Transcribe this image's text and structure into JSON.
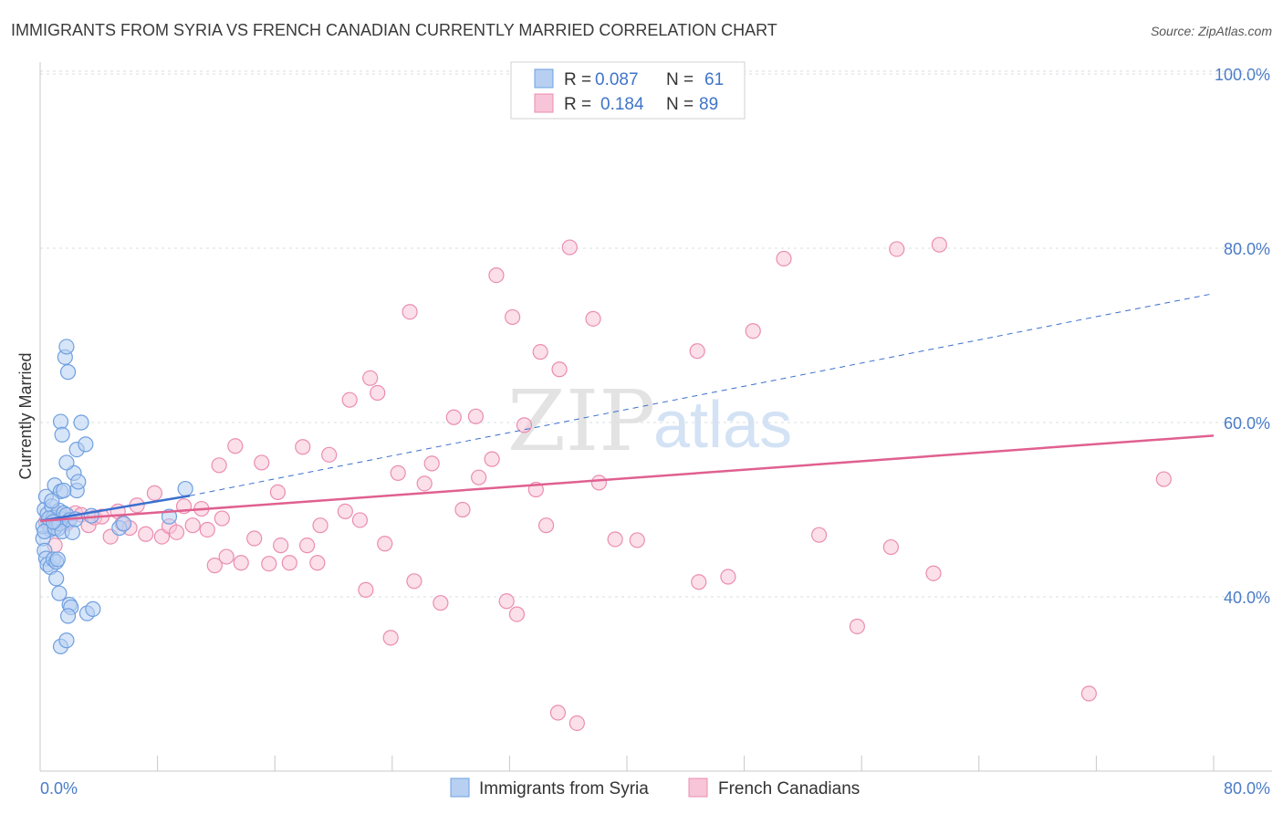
{
  "title": "IMMIGRANTS FROM SYRIA VS FRENCH CANADIAN CURRENTLY MARRIED CORRELATION CHART",
  "source": "Source: ZipAtlas.com",
  "watermark": {
    "zip": "ZIP",
    "atlas": "atlas"
  },
  "colors": {
    "blue": "#6f9fe0",
    "blue_fill": "#b7d0f2",
    "blue_line": "#3b6fcf",
    "pink": "#eb8db0",
    "pink_fill": "#f7c5d7",
    "pink_line": "#e0608f",
    "tick_label": "#4a7cc7"
  },
  "legend": {
    "rows": [
      {
        "r_label": "R =",
        "r_value": "0.087",
        "n_label": "N =",
        "n_value": "61"
      },
      {
        "r_label": "R =",
        "r_value": "0.184",
        "n_label": "N =",
        "n_value": "89"
      }
    ]
  },
  "bottom_legend": [
    "Immigrants from Syria",
    "French Canadians"
  ],
  "chart_data": {
    "type": "scatter",
    "title": "IMMIGRANTS FROM SYRIA VS FRENCH CANADIAN CURRENTLY MARRIED CORRELATION CHART",
    "xlabel": "",
    "ylabel": "Currently Married",
    "xlim": [
      0,
      80
    ],
    "ylim": [
      20,
      102
    ],
    "x_tick_labels": [
      "0.0%",
      "80.0%"
    ],
    "y_ticks": [
      40,
      60,
      80,
      100
    ],
    "y_tick_labels": [
      "40.0%",
      "60.0%",
      "80.0%",
      "100.0%"
    ],
    "grid": true,
    "series": [
      {
        "name": "Immigrants from Syria",
        "R": 0.087,
        "N": 61,
        "trend": {
          "x0": 0,
          "y0": 48.7,
          "x1": 10.2,
          "y1": 51.6,
          "dashed_to_x": 80,
          "dashed_to_y": 74.8
        },
        "points": [
          [
            0.3,
            50.0
          ],
          [
            0.4,
            51.5
          ],
          [
            0.5,
            49.5
          ],
          [
            0.6,
            48.3
          ],
          [
            0.7,
            47.7
          ],
          [
            0.8,
            50.4
          ],
          [
            0.9,
            49.1
          ],
          [
            1.0,
            52.8
          ],
          [
            1.1,
            48.6
          ],
          [
            1.2,
            47.8
          ],
          [
            1.3,
            49.9
          ],
          [
            1.4,
            52.1
          ],
          [
            1.5,
            48.9
          ],
          [
            1.6,
            49.6
          ],
          [
            0.2,
            46.7
          ],
          [
            0.3,
            45.3
          ],
          [
            0.4,
            44.4
          ],
          [
            0.5,
            43.7
          ],
          [
            0.7,
            43.4
          ],
          [
            0.9,
            44.3
          ],
          [
            1.1,
            44.0
          ],
          [
            1.2,
            44.3
          ],
          [
            0.2,
            48.1
          ],
          [
            0.3,
            47.5
          ],
          [
            0.6,
            49.0
          ],
          [
            0.8,
            51.0
          ],
          [
            1.0,
            47.9
          ],
          [
            1.3,
            48.4
          ],
          [
            1.5,
            47.5
          ],
          [
            1.8,
            49.4
          ],
          [
            2.0,
            48.8
          ],
          [
            2.2,
            47.4
          ],
          [
            2.3,
            54.2
          ],
          [
            2.5,
            52.2
          ],
          [
            1.8,
            55.4
          ],
          [
            2.6,
            53.2
          ],
          [
            2.8,
            60.0
          ],
          [
            1.4,
            60.1
          ],
          [
            1.5,
            58.6
          ],
          [
            2.5,
            56.9
          ],
          [
            3.1,
            57.5
          ],
          [
            1.7,
            67.5
          ],
          [
            1.8,
            68.7
          ],
          [
            1.9,
            65.8
          ],
          [
            1.1,
            42.1
          ],
          [
            1.3,
            40.4
          ],
          [
            2.0,
            39.1
          ],
          [
            2.1,
            38.8
          ],
          [
            1.9,
            37.8
          ],
          [
            3.2,
            38.1
          ],
          [
            3.6,
            38.6
          ],
          [
            1.4,
            34.3
          ],
          [
            1.8,
            35.0
          ],
          [
            5.4,
            47.9
          ],
          [
            5.7,
            48.4
          ],
          [
            8.8,
            49.2
          ],
          [
            9.9,
            52.4
          ],
          [
            0.9,
            48.6
          ],
          [
            1.6,
            52.2
          ],
          [
            2.4,
            48.9
          ],
          [
            3.5,
            49.3
          ]
        ]
      },
      {
        "name": "French Canadians",
        "R": 0.184,
        "N": 89,
        "trend": {
          "x0": 0,
          "y0": 48.7,
          "x1": 80,
          "y1": 58.5
        },
        "points": [
          [
            0.4,
            48.6
          ],
          [
            0.8,
            47.9
          ],
          [
            1.0,
            45.9
          ],
          [
            1.3,
            49.4
          ],
          [
            1.8,
            48.4
          ],
          [
            2.4,
            49.6
          ],
          [
            2.8,
            49.4
          ],
          [
            3.3,
            48.2
          ],
          [
            3.7,
            49.1
          ],
          [
            4.2,
            49.2
          ],
          [
            4.8,
            46.9
          ],
          [
            5.3,
            49.8
          ],
          [
            5.6,
            48.4
          ],
          [
            6.1,
            47.9
          ],
          [
            6.6,
            50.5
          ],
          [
            7.2,
            47.2
          ],
          [
            7.8,
            51.9
          ],
          [
            8.3,
            46.9
          ],
          [
            8.8,
            48.1
          ],
          [
            9.3,
            47.4
          ],
          [
            9.8,
            50.4
          ],
          [
            10.4,
            48.2
          ],
          [
            11.0,
            50.1
          ],
          [
            11.4,
            47.7
          ],
          [
            11.9,
            43.6
          ],
          [
            12.2,
            55.1
          ],
          [
            12.4,
            49.0
          ],
          [
            12.7,
            44.6
          ],
          [
            13.3,
            57.3
          ],
          [
            13.7,
            43.9
          ],
          [
            14.6,
            46.7
          ],
          [
            15.1,
            55.4
          ],
          [
            15.6,
            43.8
          ],
          [
            16.2,
            52.0
          ],
          [
            16.4,
            45.9
          ],
          [
            17.0,
            43.9
          ],
          [
            17.9,
            57.2
          ],
          [
            18.2,
            45.9
          ],
          [
            18.9,
            43.9
          ],
          [
            19.1,
            48.2
          ],
          [
            19.7,
            56.3
          ],
          [
            20.8,
            49.8
          ],
          [
            21.1,
            62.6
          ],
          [
            21.8,
            48.8
          ],
          [
            22.2,
            40.8
          ],
          [
            22.5,
            65.1
          ],
          [
            23.0,
            63.4
          ],
          [
            23.5,
            46.1
          ],
          [
            23.9,
            35.3
          ],
          [
            24.4,
            54.2
          ],
          [
            25.2,
            72.7
          ],
          [
            25.5,
            41.8
          ],
          [
            26.2,
            53.0
          ],
          [
            26.7,
            55.3
          ],
          [
            27.3,
            39.3
          ],
          [
            28.2,
            60.6
          ],
          [
            28.8,
            50.0
          ],
          [
            29.7,
            60.7
          ],
          [
            29.9,
            53.7
          ],
          [
            30.8,
            55.8
          ],
          [
            31.1,
            76.9
          ],
          [
            31.8,
            39.5
          ],
          [
            32.2,
            72.1
          ],
          [
            32.5,
            38.0
          ],
          [
            33.0,
            59.7
          ],
          [
            33.8,
            52.3
          ],
          [
            34.1,
            68.1
          ],
          [
            34.5,
            48.2
          ],
          [
            35.4,
            66.1
          ],
          [
            35.3,
            26.7
          ],
          [
            36.1,
            80.1
          ],
          [
            36.6,
            25.5
          ],
          [
            37.7,
            71.9
          ],
          [
            38.1,
            53.1
          ],
          [
            39.2,
            46.6
          ],
          [
            40.7,
            46.5
          ],
          [
            44.8,
            68.2
          ],
          [
            44.9,
            41.7
          ],
          [
            46.9,
            42.3
          ],
          [
            48.6,
            70.5
          ],
          [
            50.7,
            78.8
          ],
          [
            53.1,
            47.1
          ],
          [
            55.7,
            36.6
          ],
          [
            58.0,
            45.7
          ],
          [
            58.4,
            79.9
          ],
          [
            60.9,
            42.7
          ],
          [
            61.3,
            80.4
          ],
          [
            71.5,
            28.9
          ],
          [
            76.6,
            53.5
          ]
        ]
      }
    ]
  }
}
